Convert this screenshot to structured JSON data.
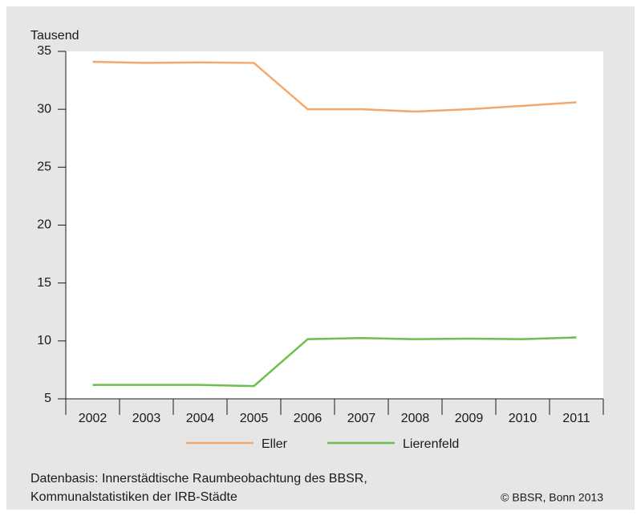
{
  "chart_data": {
    "type": "line",
    "y_label": "Tausend",
    "categories": [
      "2002",
      "2003",
      "2004",
      "2005",
      "2006",
      "2007",
      "2008",
      "2009",
      "2010",
      "2011"
    ],
    "series": [
      {
        "name": "Eller",
        "color": "#f4a86b",
        "values": [
          34.1,
          34.0,
          34.05,
          34.0,
          30.0,
          30.0,
          29.8,
          30.0,
          30.3,
          30.6
        ]
      },
      {
        "name": "Lierenfeld",
        "color": "#6cbf4a",
        "values": [
          6.2,
          6.2,
          6.2,
          6.1,
          10.15,
          10.25,
          10.15,
          10.2,
          10.15,
          10.3
        ]
      }
    ],
    "ylim": [
      5,
      35
    ],
    "yticks": [
      5,
      10,
      15,
      20,
      25,
      30,
      35
    ],
    "grid": false,
    "source": [
      "Datenbasis: Innerstädtische Raumbeobachtung des BBSR,",
      "Kommunalstatistiken der IRB-Städte"
    ],
    "copyright": "© BBSR, Bonn 2013"
  }
}
